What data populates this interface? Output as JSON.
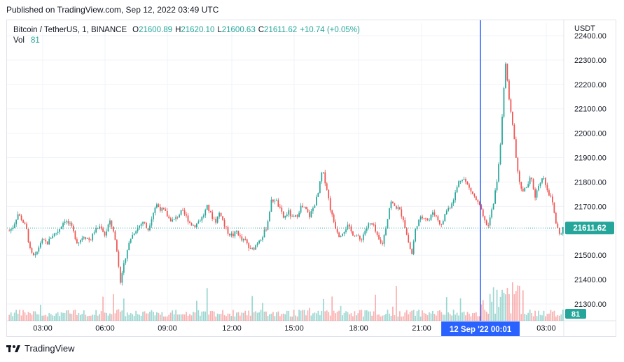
{
  "header": {
    "published": "Published on TradingView.com, Sep 12, 2022 03:49 UTC"
  },
  "legend": {
    "symbol": "Bitcoin / TetherUS, 1, BINANCE",
    "o_label": "O",
    "o_value": "21600.89",
    "h_label": "H",
    "h_value": "21620.10",
    "l_label": "L",
    "l_value": "21600.63",
    "c_label": "C",
    "c_value": "21611.62",
    "change": "+10.74 (+0.05%)",
    "vol_label": "Vol",
    "vol_value": "81"
  },
  "footer": {
    "brand": "TradingView"
  },
  "colors": {
    "up": "#26a69a",
    "down": "#ef5350",
    "crosshair": "#2962ff",
    "grid": "#f0f3fa",
    "text": "#131722"
  },
  "chart_data": {
    "type": "candlestick",
    "currency": "USDT",
    "ylim": [
      21240,
      22460
    ],
    "y_ticks": [
      "22400.00",
      "22300.00",
      "22200.00",
      "22100.00",
      "22000.00",
      "21900.00",
      "21800.00",
      "21700.00",
      "21600.00",
      "21500.00",
      "21400.00",
      "21300.00"
    ],
    "x_ticks": [
      "03:00",
      "06:00",
      "09:00",
      "12:00",
      "15:00",
      "18:00",
      "21:00",
      "00:01",
      "03:00"
    ],
    "last_price_label": "21611.62",
    "volume_label": "81",
    "crosshair_label": "12 Sep '22   00:01",
    "price_path": [
      [
        0,
        21600
      ],
      [
        2,
        21620
      ],
      [
        4,
        21670
      ],
      [
        6,
        21645
      ],
      [
        8,
        21610
      ],
      [
        10,
        21510
      ],
      [
        12,
        21490
      ],
      [
        15,
        21560
      ],
      [
        18,
        21550
      ],
      [
        20,
        21580
      ],
      [
        23,
        21600
      ],
      [
        26,
        21645
      ],
      [
        29,
        21620
      ],
      [
        32,
        21550
      ],
      [
        35,
        21580
      ],
      [
        38,
        21560
      ],
      [
        40,
        21600
      ],
      [
        43,
        21620
      ],
      [
        45,
        21580
      ],
      [
        47,
        21640
      ],
      [
        49,
        21600
      ],
      [
        51,
        21490
      ],
      [
        52,
        21380
      ],
      [
        53,
        21430
      ],
      [
        55,
        21510
      ],
      [
        57,
        21570
      ],
      [
        59,
        21600
      ],
      [
        61,
        21620
      ],
      [
        63,
        21640
      ],
      [
        65,
        21600
      ],
      [
        67,
        21660
      ],
      [
        69,
        21710
      ],
      [
        71,
        21690
      ],
      [
        73,
        21680
      ],
      [
        75,
        21650
      ],
      [
        77,
        21640
      ],
      [
        79,
        21660
      ],
      [
        81,
        21680
      ],
      [
        83,
        21660
      ],
      [
        85,
        21630
      ],
      [
        87,
        21620
      ],
      [
        89,
        21640
      ],
      [
        91,
        21660
      ],
      [
        93,
        21700
      ],
      [
        95,
        21660
      ],
      [
        97,
        21640
      ],
      [
        99,
        21680
      ],
      [
        101,
        21620
      ],
      [
        103,
        21590
      ],
      [
        105,
        21580
      ],
      [
        107,
        21600
      ],
      [
        109,
        21560
      ],
      [
        111,
        21560
      ],
      [
        113,
        21520
      ],
      [
        115,
        21530
      ],
      [
        117,
        21560
      ],
      [
        119,
        21580
      ],
      [
        121,
        21620
      ],
      [
        123,
        21720
      ],
      [
        125,
        21730
      ],
      [
        127,
        21690
      ],
      [
        129,
        21650
      ],
      [
        131,
        21680
      ],
      [
        133,
        21650
      ],
      [
        135,
        21660
      ],
      [
        137,
        21700
      ],
      [
        139,
        21690
      ],
      [
        141,
        21660
      ],
      [
        143,
        21700
      ],
      [
        145,
        21750
      ],
      [
        147,
        21850
      ],
      [
        149,
        21780
      ],
      [
        150,
        21730
      ],
      [
        151,
        21680
      ],
      [
        153,
        21620
      ],
      [
        155,
        21580
      ],
      [
        157,
        21600
      ],
      [
        159,
        21620
      ],
      [
        161,
        21590
      ],
      [
        163,
        21580
      ],
      [
        165,
        21560
      ],
      [
        167,
        21600
      ],
      [
        169,
        21630
      ],
      [
        171,
        21620
      ],
      [
        173,
        21570
      ],
      [
        175,
        21540
      ],
      [
        177,
        21620
      ],
      [
        179,
        21720
      ],
      [
        181,
        21700
      ],
      [
        183,
        21690
      ],
      [
        185,
        21650
      ],
      [
        187,
        21570
      ],
      [
        189,
        21500
      ],
      [
        191,
        21620
      ],
      [
        193,
        21650
      ],
      [
        195,
        21660
      ],
      [
        197,
        21640
      ],
      [
        199,
        21680
      ],
      [
        201,
        21650
      ],
      [
        203,
        21620
      ],
      [
        205,
        21680
      ],
      [
        207,
        21700
      ],
      [
        209,
        21740
      ],
      [
        211,
        21800
      ],
      [
        213,
        21820
      ],
      [
        215,
        21790
      ],
      [
        217,
        21760
      ],
      [
        219,
        21730
      ],
      [
        221,
        21700
      ],
      [
        223,
        21640
      ],
      [
        225,
        21620
      ],
      [
        227,
        21700
      ],
      [
        229,
        21800
      ],
      [
        231,
        21980
      ],
      [
        232,
        22150
      ],
      [
        233,
        22300
      ],
      [
        234,
        22200
      ],
      [
        235,
        22120
      ],
      [
        236,
        22050
      ],
      [
        237,
        21990
      ],
      [
        238,
        21900
      ],
      [
        239,
        21820
      ],
      [
        241,
        21760
      ],
      [
        243,
        21780
      ],
      [
        245,
        21820
      ],
      [
        247,
        21740
      ],
      [
        249,
        21800
      ],
      [
        251,
        21820
      ],
      [
        253,
        21760
      ],
      [
        255,
        21720
      ],
      [
        257,
        21620
      ],
      [
        259,
        21580
      ],
      [
        260,
        21612
      ]
    ],
    "price_scale_range": [
      0,
      260
    ],
    "crosshair_index": 221
  }
}
